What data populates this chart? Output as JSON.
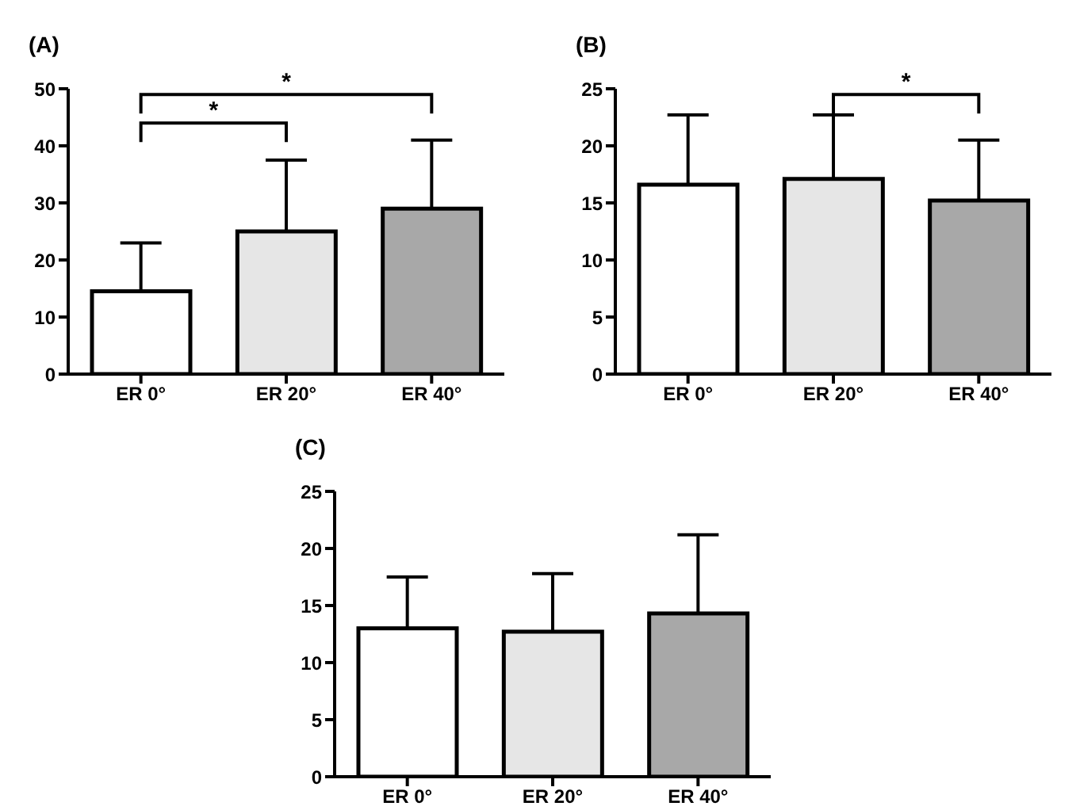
{
  "chart_data": [
    {
      "type": "bar",
      "title": "(A)",
      "categories": [
        "ER 0°",
        "ER 20°",
        "ER 40°"
      ],
      "values": [
        14.5,
        25,
        29
      ],
      "colors": [
        "#ffffff",
        "#e6e6e6",
        "#a8a8a8"
      ],
      "errors": [
        [
          14.5,
          23
        ],
        [
          25,
          37.5
        ],
        [
          29,
          41
        ]
      ],
      "ylim": [
        0,
        50
      ],
      "yticks": [
        0,
        10,
        20,
        30,
        40,
        50
      ],
      "grid": false,
      "legend": false,
      "annotations": [
        "*",
        "*"
      ]
    },
    {
      "type": "bar",
      "title": "(B)",
      "categories": [
        "ER 0°",
        "ER 20°",
        "ER 40°"
      ],
      "values": [
        16.6,
        17.1,
        15.2
      ],
      "colors": [
        "#ffffff",
        "#e6e6e6",
        "#a8a8a8"
      ],
      "errors": [
        [
          16.6,
          22.7
        ],
        [
          17.1,
          22.7
        ],
        [
          15.2,
          20.5
        ]
      ],
      "ylim": [
        0,
        25
      ],
      "yticks": [
        0,
        5,
        10,
        15,
        20,
        25
      ],
      "grid": false,
      "legend": false,
      "annotations": [
        "*"
      ]
    },
    {
      "type": "bar",
      "title": "(C)",
      "categories": [
        "ER 0°",
        "ER 20°",
        "ER 40°"
      ],
      "values": [
        13,
        12.7,
        14.3
      ],
      "colors": [
        "#ffffff",
        "#e6e6e6",
        "#a8a8a8"
      ],
      "errors": [
        [
          13,
          17.5
        ],
        [
          12.7,
          17.8
        ],
        [
          14.3,
          21.2
        ]
      ],
      "ylim": [
        0,
        25
      ],
      "yticks": [
        0,
        5,
        10,
        15,
        20,
        25
      ],
      "grid": false,
      "legend": false
    }
  ]
}
